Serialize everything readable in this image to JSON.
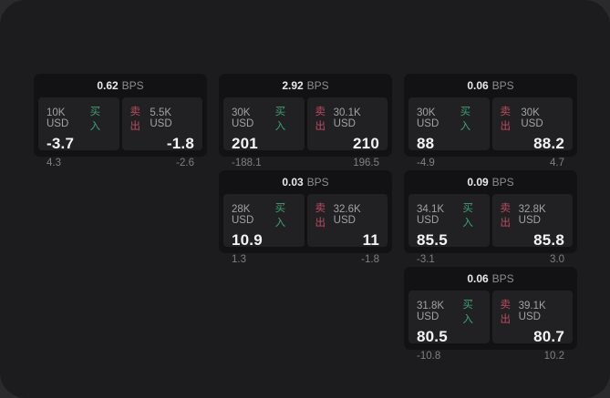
{
  "labels": {
    "bps_suffix": "BPS",
    "buy": "买入",
    "sell": "卖出"
  },
  "colors": {
    "buy_green": "#3aa473",
    "sell_red": "#bf4a5f",
    "window_bg": "#1c1c1e",
    "card_bg": "#121214",
    "panel_bg": "#212124"
  },
  "cards": [
    {
      "bps": "0.62",
      "buy": {
        "size": "10K USD",
        "value": "-3.7",
        "sub": "4.3"
      },
      "sell": {
        "size": "5.5K USD",
        "value": "-1.8",
        "sub": "-2.6"
      }
    },
    {
      "bps": "2.92",
      "buy": {
        "size": "30K USD",
        "value": "201",
        "sub": "-188.1"
      },
      "sell": {
        "size": "30.1K USD",
        "value": "210",
        "sub": "196.5"
      }
    },
    {
      "bps": "0.06",
      "buy": {
        "size": "30K USD",
        "value": "88",
        "sub": "-4.9"
      },
      "sell": {
        "size": "30K USD",
        "value": "88.2",
        "sub": "4.7"
      }
    },
    {
      "bps": "0.03",
      "buy": {
        "size": "28K USD",
        "value": "10.9",
        "sub": "1.3"
      },
      "sell": {
        "size": "32.6K USD",
        "value": "11",
        "sub": "-1.8"
      }
    },
    {
      "bps": "0.09",
      "buy": {
        "size": "34.1K USD",
        "value": "85.5",
        "sub": "-3.1"
      },
      "sell": {
        "size": "32.8K USD",
        "value": "85.8",
        "sub": "3.0"
      }
    },
    {
      "bps": "0.06",
      "buy": {
        "size": "31.8K USD",
        "value": "80.5",
        "sub": "-10.8"
      },
      "sell": {
        "size": "39.1K USD",
        "value": "80.7",
        "sub": "10.2"
      }
    }
  ]
}
